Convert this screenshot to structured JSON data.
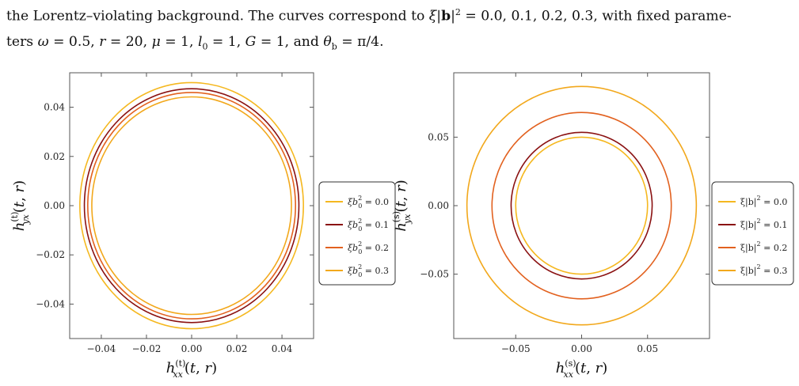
{
  "caption": {
    "line1_a": "the Lorentz–violating background. The curves correspond to ",
    "line1_xi": "ξ",
    "line1_b": "|",
    "line1_bold": "b",
    "line1_c": "|",
    "line1_sq": "2",
    "line1_d": " = 0.0, 0.1, 0.2, 0.3, with fixed parame-",
    "line2_a": "ters ",
    "omega_sym": "ω",
    "line2_b": " = 0.5, ",
    "r_sym": "r",
    "line2_c": " = 20, ",
    "mu_sym": "μ",
    "line2_d": " = 1, ",
    "l_sym": "l",
    "l_sub": "0",
    "line2_e": " = 1, ",
    "G_sym": "G",
    "line2_f": " = 1, and ",
    "theta_sym": "θ",
    "theta_sub": "b",
    "line2_g": " = π/4."
  },
  "colors": {
    "s0": "#f5b820",
    "s1": "#8a1111",
    "s2": "#e2611f",
    "s3": "#f2a81c"
  },
  "chart_data": [
    {
      "type": "parametric-line",
      "xlabel": "h_xx^(t)(t,r)",
      "ylabel": "h_yx^(t)(t,r)",
      "xlim": [
        -0.054,
        0.054
      ],
      "ylim": [
        -0.054,
        0.054
      ],
      "xticks": [
        "−0.04",
        "−0.02",
        "0.00",
        "0.02",
        "0.04"
      ],
      "yticks": [
        "−0.04",
        "−0.02",
        "0.00",
        "0.02",
        "0.04"
      ],
      "xtick_values": [
        -0.04,
        -0.02,
        0.0,
        0.02,
        0.04
      ],
      "ytick_values": [
        -0.04,
        -0.02,
        0.0,
        0.02,
        0.04
      ],
      "legend_placement": "right",
      "legend_prefix": "ξb",
      "legend_sup": "2",
      "legend_sub": "0",
      "series": [
        {
          "name": "= 0.0",
          "rx": 0.0495,
          "ry": 0.05,
          "color": "#f5b820"
        },
        {
          "name": "= 0.1",
          "rx": 0.0475,
          "ry": 0.0475,
          "color": "#8a1111"
        },
        {
          "name": "= 0.2",
          "rx": 0.046,
          "ry": 0.046,
          "color": "#e2611f"
        },
        {
          "name": "= 0.3",
          "rx": 0.0442,
          "ry": 0.0442,
          "color": "#f2a81c"
        }
      ]
    },
    {
      "type": "parametric-line",
      "xlabel": "h_xx^(s)(t,r)",
      "ylabel": "h_yx^(s)(t,r)",
      "xlim": [
        -0.097,
        0.097
      ],
      "ylim": [
        -0.097,
        0.097
      ],
      "xticks": [
        "−0.05",
        "0.00",
        "0.05"
      ],
      "yticks": [
        "−0.05",
        "0.00",
        "0.05"
      ],
      "xtick_values": [
        -0.05,
        0.0,
        0.05
      ],
      "ytick_values": [
        -0.05,
        0.0,
        0.05
      ],
      "legend_placement": "right",
      "legend_prefix": "ξ|b|",
      "legend_sup": "2",
      "series": [
        {
          "name": "= 0.0",
          "rx": 0.05,
          "ry": 0.05,
          "color": "#f5b820"
        },
        {
          "name": "= 0.1",
          "rx": 0.0535,
          "ry": 0.0535,
          "color": "#8a1111"
        },
        {
          "name": "= 0.2",
          "rx": 0.068,
          "ry": 0.068,
          "color": "#e2611f"
        },
        {
          "name": "= 0.3",
          "rx": 0.087,
          "ry": 0.087,
          "color": "#f2a81c"
        }
      ]
    }
  ]
}
